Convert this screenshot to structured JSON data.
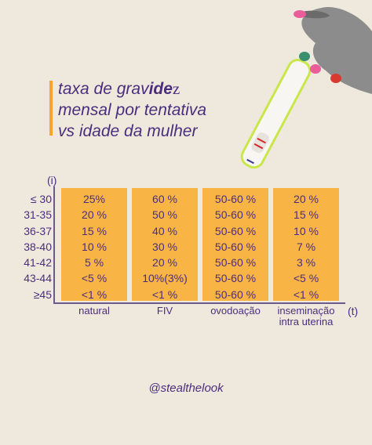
{
  "title": {
    "line1_part1": "taxa de grav",
    "line1_bold": "ide",
    "line1_serif": "z",
    "line2": "mensal por tentativa",
    "line3": "vs idade da mulher"
  },
  "axes": {
    "y_label": "(i)",
    "x_label": "(t)"
  },
  "row_labels": [
    "≤ 30",
    "31-35",
    "36-37",
    "38-40",
    "41-42",
    "43-44",
    "≥45"
  ],
  "columns": [
    {
      "label": "natural",
      "values": [
        "25%",
        "20 %",
        "15 %",
        "10 %",
        "5 %",
        "<5 %",
        "<1 %"
      ]
    },
    {
      "label": "FIV",
      "values": [
        "60 %",
        "50 %",
        "40 %",
        "30 %",
        "20 %",
        "10%(3%)",
        "<1 %"
      ]
    },
    {
      "label": "ovodoação",
      "values": [
        "50-60 %",
        "50-60 %",
        "50-60 %",
        "50-60 %",
        "50-60 %",
        "50-60 %",
        "50-60 %"
      ]
    },
    {
      "label_line1": "inseminação",
      "label_line2": "intra uterina",
      "values": [
        "20 %",
        "15 %",
        "10 %",
        "7 %",
        "3 %",
        "<5 %",
        "<1 %"
      ]
    }
  ],
  "handle": "@stealthelook",
  "colors": {
    "background": "#efe9dd",
    "cell": "#f8b545",
    "text": "#4b2d7e",
    "accent": "#f6a52b"
  }
}
